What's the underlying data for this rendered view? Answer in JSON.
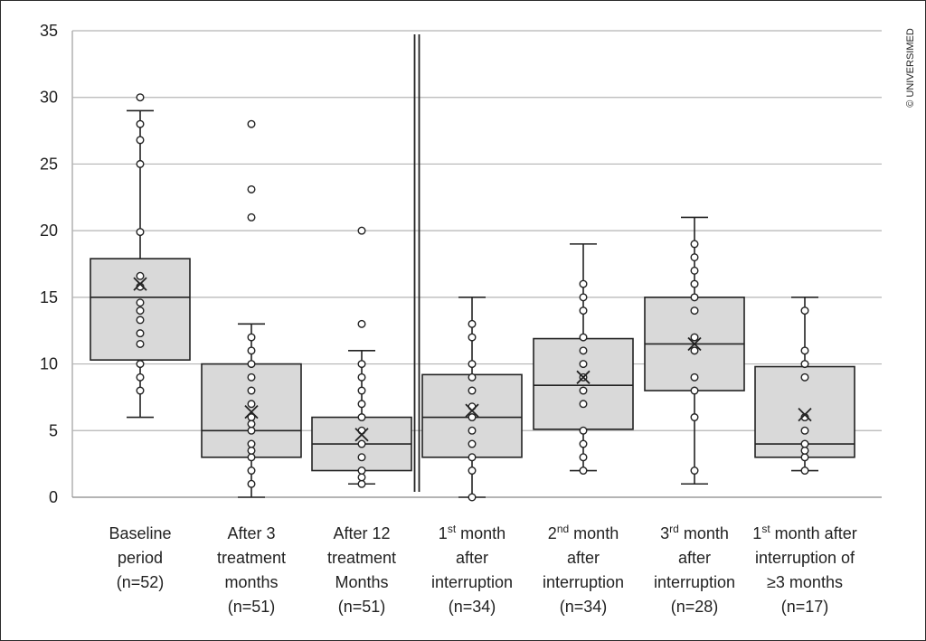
{
  "copyright": "© UNIVERSIMED",
  "chart_data": {
    "type": "box",
    "ylim": [
      0,
      35
    ],
    "yticks": [
      0,
      5,
      10,
      15,
      20,
      25,
      30,
      35
    ],
    "grid": true,
    "separator_after_group": 3,
    "groups": [
      {
        "label_lines": [
          [
            {
              "t": "Baseline"
            }
          ],
          [
            {
              "t": "period"
            }
          ],
          [
            {
              "t": "(n=52)"
            }
          ]
        ],
        "min": 6,
        "q1": 10.3,
        "median": 15,
        "q3": 17.9,
        "max": 29,
        "mean": 16,
        "points": [
          8,
          9,
          10,
          11.5,
          12.3,
          13.3,
          14,
          14.6,
          15.8,
          16.6,
          19.9,
          25,
          26.8,
          28,
          30
        ]
      },
      {
        "label_lines": [
          [
            {
              "t": "After 3"
            }
          ],
          [
            {
              "t": "treatment"
            }
          ],
          [
            {
              "t": "months"
            }
          ],
          [
            {
              "t": "(n=51)"
            }
          ]
        ],
        "min": 0,
        "q1": 3,
        "median": 5,
        "q3": 10,
        "max": 13,
        "mean": 6.4,
        "points": [
          1,
          2,
          3,
          3.5,
          4,
          5,
          5.5,
          6,
          7,
          8,
          9,
          10,
          11,
          12,
          21,
          23.1,
          28
        ]
      },
      {
        "label_lines": [
          [
            {
              "t": "After 12"
            }
          ],
          [
            {
              "t": "treatment"
            }
          ],
          [
            {
              "t": "Months"
            }
          ],
          [
            {
              "t": "(n=51)"
            }
          ]
        ],
        "min": 1,
        "q1": 2,
        "median": 4,
        "q3": 6,
        "max": 11,
        "mean": 4.7,
        "points": [
          1,
          1.5,
          2,
          3,
          4,
          5,
          6,
          7,
          8,
          9,
          10,
          13,
          20
        ]
      },
      {
        "label_lines": [
          [
            {
              "t": "1"
            },
            {
              "t": "st",
              "sup": true
            },
            {
              "t": " month"
            }
          ],
          [
            {
              "t": "after"
            }
          ],
          [
            {
              "t": "interruption"
            }
          ],
          [
            {
              "t": "(n=34)"
            }
          ]
        ],
        "min": 0,
        "q1": 3,
        "median": 6,
        "q3": 9.2,
        "max": 15,
        "mean": 6.5,
        "points": [
          0,
          2,
          3,
          4,
          5,
          6,
          6.8,
          8,
          9,
          10,
          12,
          13
        ]
      },
      {
        "label_lines": [
          [
            {
              "t": "2"
            },
            {
              "t": "nd",
              "sup": true
            },
            {
              "t": " month"
            }
          ],
          [
            {
              "t": "after"
            }
          ],
          [
            {
              "t": "interruption"
            }
          ],
          [
            {
              "t": "(n=34)"
            }
          ]
        ],
        "min": 2,
        "q1": 5.1,
        "median": 8.4,
        "q3": 11.9,
        "max": 19,
        "mean": 9,
        "points": [
          2,
          3,
          4,
          5,
          7,
          8,
          9,
          10,
          11,
          12,
          14,
          15,
          16
        ]
      },
      {
        "label_lines": [
          [
            {
              "t": "3"
            },
            {
              "t": "rd",
              "sup": true
            },
            {
              "t": " month"
            }
          ],
          [
            {
              "t": "after"
            }
          ],
          [
            {
              "t": "interruption"
            }
          ],
          [
            {
              "t": "(n=28)"
            }
          ]
        ],
        "min": 1,
        "q1": 8,
        "median": 11.5,
        "q3": 15,
        "max": 21,
        "mean": 11.5,
        "points": [
          2,
          6,
          8,
          9,
          11,
          12,
          14,
          15,
          16,
          17,
          18,
          19
        ]
      },
      {
        "label_lines": [
          [
            {
              "t": "1"
            },
            {
              "t": "st",
              "sup": true
            },
            {
              "t": " month after"
            }
          ],
          [
            {
              "t": "interruption of"
            }
          ],
          [
            {
              "t": "≥3 months"
            }
          ],
          [
            {
              "t": "(n=17)"
            }
          ]
        ],
        "min": 2,
        "q1": 3,
        "median": 4,
        "q3": 9.8,
        "max": 15,
        "mean": 6.2,
        "points": [
          2,
          3,
          3.5,
          4,
          5,
          6,
          9,
          10,
          11,
          14
        ]
      }
    ]
  }
}
